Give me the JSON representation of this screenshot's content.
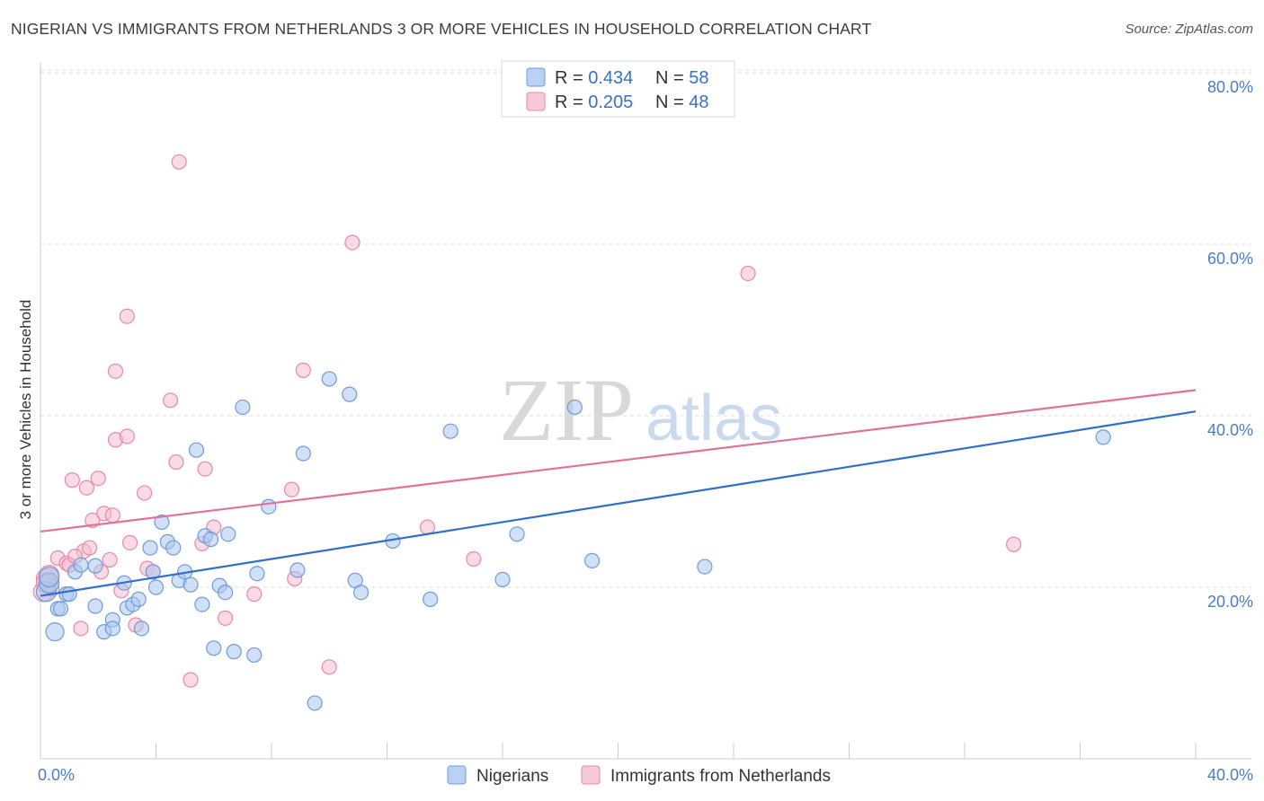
{
  "title": "NIGERIAN VS IMMIGRANTS FROM NETHERLANDS 3 OR MORE VEHICLES IN HOUSEHOLD CORRELATION CHART",
  "source": "Source: ZipAtlas.com",
  "watermark": {
    "zip": "ZIP",
    "atlas": "atlas"
  },
  "legend": {
    "items": [
      {
        "r_label": "R = ",
        "r_value": "0.434",
        "n_label": "N = ",
        "n_value": "58"
      },
      {
        "r_label": "R = ",
        "r_value": "0.205",
        "n_label": "N = ",
        "n_value": "48"
      }
    ]
  },
  "colors": {
    "nigerians_fill": "#a9c6f0",
    "nigerians_stroke": "#6f9ad8",
    "nigerians_line": "#2f6fcb",
    "netherlands_fill": "#f6bccd",
    "netherlands_stroke": "#e58aa7",
    "netherlands_line": "#e0729a"
  },
  "chart_data": {
    "type": "scatter",
    "title": "NIGERIAN VS IMMIGRANTS FROM NETHERLANDS 3 OR MORE VEHICLES IN HOUSEHOLD CORRELATION CHART",
    "xlabel": "",
    "ylabel": "3 or more Vehicles in Household",
    "xlim": [
      0,
      40
    ],
    "ylim": [
      0,
      82
    ],
    "x_tick_labels": [
      "0.0%",
      "40.0%"
    ],
    "y_ticks": [
      20,
      40,
      60,
      80
    ],
    "y_tick_labels": [
      "20.0%",
      "40.0%",
      "60.0%",
      "80.0%"
    ],
    "grid": true,
    "legend_position": "top-center",
    "series": [
      {
        "name": "Nigerians",
        "trend": [
          [
            0,
            19.0
          ],
          [
            40,
            40.5
          ]
        ],
        "points": [
          [
            0.2,
            19.5
          ],
          [
            0.3,
            20.5
          ],
          [
            0.5,
            14.8
          ],
          [
            0.6,
            17.5
          ],
          [
            0.7,
            17.5
          ],
          [
            0.9,
            19.2
          ],
          [
            1.0,
            19.2
          ],
          [
            1.2,
            21.8
          ],
          [
            1.4,
            22.6
          ],
          [
            1.9,
            17.8
          ],
          [
            1.9,
            22.5
          ],
          [
            2.2,
            14.8
          ],
          [
            2.5,
            16.2
          ],
          [
            2.5,
            15.2
          ],
          [
            2.9,
            20.5
          ],
          [
            3.0,
            17.6
          ],
          [
            3.2,
            18.0
          ],
          [
            3.4,
            18.6
          ],
          [
            3.5,
            15.2
          ],
          [
            3.8,
            24.6
          ],
          [
            3.9,
            21.8
          ],
          [
            4.0,
            20.0
          ],
          [
            4.2,
            27.6
          ],
          [
            4.4,
            25.3
          ],
          [
            4.6,
            24.6
          ],
          [
            4.8,
            20.8
          ],
          [
            5.0,
            21.8
          ],
          [
            5.2,
            20.3
          ],
          [
            5.4,
            36.0
          ],
          [
            5.6,
            18.0
          ],
          [
            5.7,
            26.0
          ],
          [
            5.9,
            25.6
          ],
          [
            6.0,
            12.9
          ],
          [
            6.2,
            20.2
          ],
          [
            6.4,
            19.4
          ],
          [
            6.5,
            26.2
          ],
          [
            6.7,
            12.5
          ],
          [
            7.0,
            41.0
          ],
          [
            7.4,
            12.1
          ],
          [
            7.5,
            21.6
          ],
          [
            7.9,
            29.4
          ],
          [
            8.9,
            22.0
          ],
          [
            9.1,
            35.6
          ],
          [
            9.5,
            6.5
          ],
          [
            10.0,
            44.3
          ],
          [
            10.7,
            42.5
          ],
          [
            10.9,
            20.8
          ],
          [
            11.1,
            19.4
          ],
          [
            12.2,
            25.4
          ],
          [
            13.5,
            18.6
          ],
          [
            14.2,
            38.2
          ],
          [
            16.0,
            20.9
          ],
          [
            16.5,
            26.2
          ],
          [
            18.5,
            41.0
          ],
          [
            19.1,
            23.1
          ],
          [
            23.0,
            22.4
          ],
          [
            36.8,
            37.5
          ],
          [
            0.3,
            21.2
          ]
        ]
      },
      {
        "name": "Immigrants from Netherlands",
        "trend": [
          [
            0,
            26.5
          ],
          [
            40,
            43.0
          ]
        ],
        "points": [
          [
            0.1,
            19.5
          ],
          [
            0.2,
            21.0
          ],
          [
            0.2,
            20.5
          ],
          [
            0.4,
            19.8
          ],
          [
            0.6,
            23.4
          ],
          [
            0.9,
            22.8
          ],
          [
            1.0,
            22.6
          ],
          [
            1.1,
            32.5
          ],
          [
            1.4,
            15.2
          ],
          [
            1.5,
            24.2
          ],
          [
            1.6,
            31.6
          ],
          [
            1.7,
            24.6
          ],
          [
            1.8,
            27.8
          ],
          [
            2.0,
            32.7
          ],
          [
            2.1,
            21.8
          ],
          [
            2.2,
            28.6
          ],
          [
            2.4,
            23.2
          ],
          [
            2.5,
            28.4
          ],
          [
            2.6,
            37.2
          ],
          [
            2.6,
            45.2
          ],
          [
            2.8,
            19.6
          ],
          [
            3.0,
            37.6
          ],
          [
            3.0,
            51.6
          ],
          [
            3.1,
            25.2
          ],
          [
            3.3,
            15.6
          ],
          [
            3.6,
            31.0
          ],
          [
            3.7,
            22.2
          ],
          [
            3.9,
            21.8
          ],
          [
            4.5,
            41.8
          ],
          [
            4.7,
            34.6
          ],
          [
            4.8,
            69.6
          ],
          [
            5.2,
            9.2
          ],
          [
            5.6,
            25.1
          ],
          [
            5.7,
            33.8
          ],
          [
            6.0,
            27.0
          ],
          [
            6.4,
            16.4
          ],
          [
            7.4,
            19.2
          ],
          [
            8.7,
            31.4
          ],
          [
            8.8,
            21.0
          ],
          [
            9.1,
            45.3
          ],
          [
            10.0,
            10.7
          ],
          [
            10.8,
            60.2
          ],
          [
            13.4,
            27.0
          ],
          [
            15.0,
            23.3
          ],
          [
            24.5,
            56.6
          ],
          [
            33.7,
            25.0
          ],
          [
            0.3,
            21.4
          ],
          [
            1.2,
            23.6
          ]
        ]
      }
    ]
  },
  "bottom_legend": [
    "Nigerians",
    "Immigrants from Netherlands"
  ]
}
